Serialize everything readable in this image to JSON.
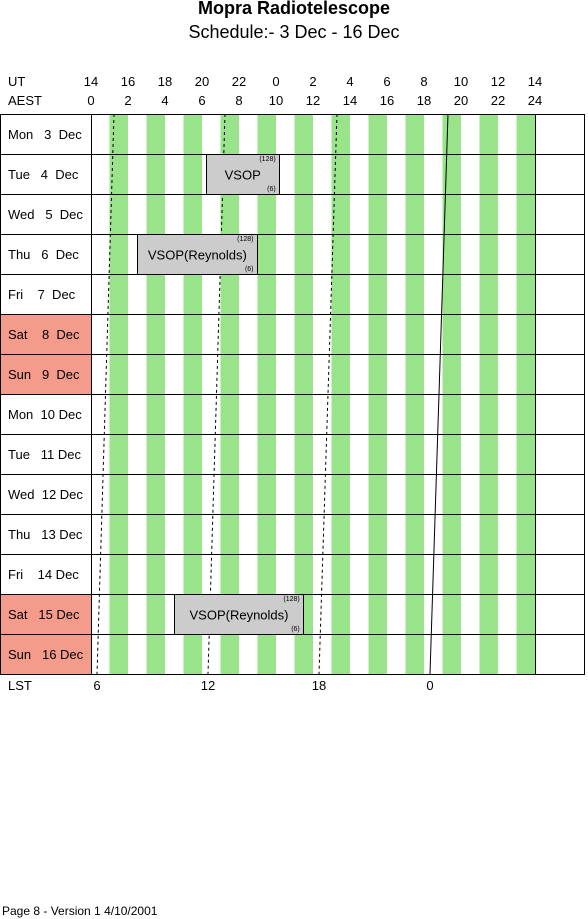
{
  "title": "Mopra Radiotelescope",
  "subtitle": "Schedule:- 3  Dec - 16 Dec",
  "axis": {
    "ut_label": "UT",
    "aest_label": "AEST",
    "lst_label": "LST",
    "ut_ticks": [
      "14",
      "16",
      "18",
      "20",
      "22",
      "0",
      "2",
      "4",
      "6",
      "8",
      "10",
      "12",
      "14"
    ],
    "aest_ticks": [
      "0",
      "2",
      "4",
      "6",
      "8",
      "10",
      "12",
      "14",
      "16",
      "18",
      "20",
      "22",
      "24"
    ],
    "lst_ticks": [
      "6",
      "12",
      "18",
      "0"
    ]
  },
  "colors": {
    "stripe": "#99e38a",
    "weekend": "#f59b8c",
    "booking": "#cccccc"
  },
  "days": [
    {
      "label": "Mon   3  Dec",
      "weekend": false
    },
    {
      "label": "Tue   4  Dec",
      "weekend": false
    },
    {
      "label": "Wed   5  Dec",
      "weekend": false
    },
    {
      "label": "Thu   6  Dec",
      "weekend": false
    },
    {
      "label": "Fri    7  Dec",
      "weekend": false
    },
    {
      "label": "Sat    8  Dec",
      "weekend": true
    },
    {
      "label": "Sun   9  Dec",
      "weekend": true
    },
    {
      "label": "Mon  10 Dec",
      "weekend": false
    },
    {
      "label": "Tue   11 Dec",
      "weekend": false
    },
    {
      "label": "Wed  12 Dec",
      "weekend": false
    },
    {
      "label": "Thu   13 Dec",
      "weekend": false
    },
    {
      "label": "Fri    14 Dec",
      "weekend": false
    },
    {
      "label": "Sat   15 Dec",
      "weekend": true
    },
    {
      "label": "Sun   16 Dec",
      "weekend": true
    }
  ],
  "bookings": [
    {
      "day_index": 1,
      "start_aest": 6.2,
      "end_aest": 10.2,
      "name": "VSOP",
      "top_note": "(128)",
      "bottom_note": "(6)"
    },
    {
      "day_index": 3,
      "start_aest": 2.5,
      "end_aest": 9.0,
      "name": "VSOP(Reynolds)",
      "top_note": "(128)",
      "bottom_note": "(6)"
    },
    {
      "day_index": 12,
      "start_aest": 4.5,
      "end_aest": 11.5,
      "name": "VSOP(Reynolds)",
      "top_note": "(128)",
      "bottom_note": "(6)"
    }
  ],
  "footer": "Page 8 - Version 1  4/10/2001"
}
